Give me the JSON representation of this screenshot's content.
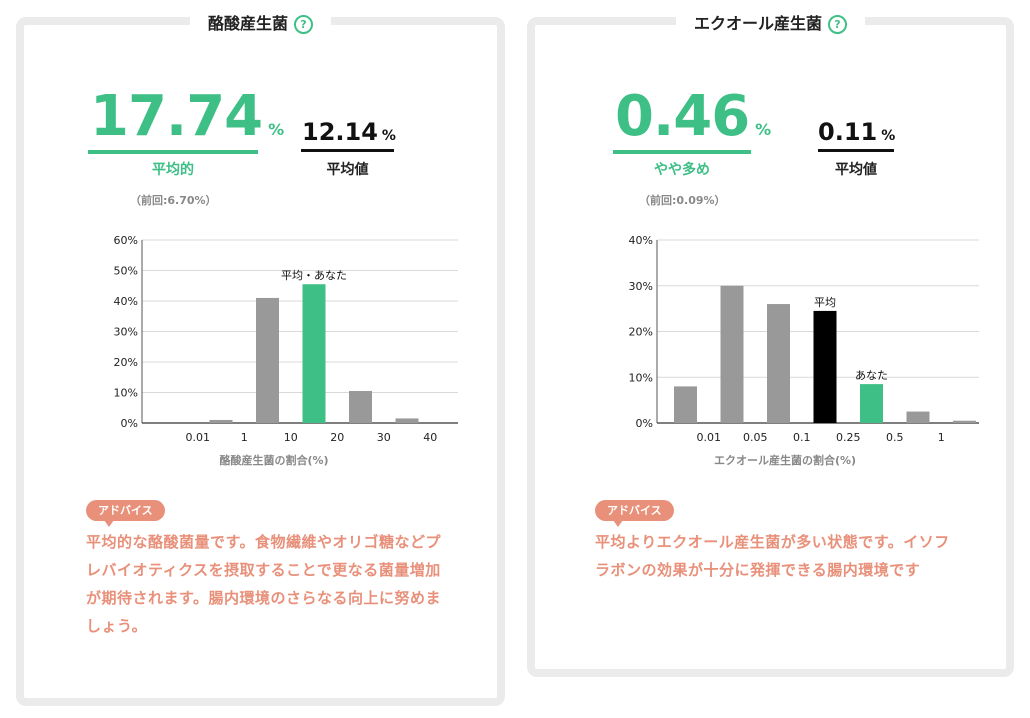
{
  "colors": {
    "accent": "#3dbf86",
    "bar_gray": "#999999",
    "highlight_black": "#000000",
    "advice": "#e8907a"
  },
  "butyrate": {
    "title": "酪酸産生菌",
    "help_icon": "question-circle-icon",
    "value": "17.74",
    "unit": "%",
    "status": "平均的",
    "previous": "（前回:6.70%）",
    "average_value": "12.14",
    "average_unit": "%",
    "average_label": "平均値",
    "chart_xtitle": "酪酸産生菌の割合(%)",
    "advice_label": "アドバイス",
    "advice_text": "平均的な酪酸菌量です。食物繊維やオリゴ糖などプレバイオティクスを摂取することで更なる菌量増加が期待されます。腸内環境のさらなる向上に努めましょう。"
  },
  "equol": {
    "title": "エクオール産生菌",
    "help_icon": "question-circle-icon",
    "value": "0.46",
    "unit": "%",
    "status": "やや多め",
    "previous": "（前回:0.09%）",
    "average_value": "0.11",
    "average_unit": "%",
    "average_label": "平均値",
    "chart_xtitle": "エクオール産生菌の割合(%)",
    "advice_label": "アドバイス",
    "advice_text": "平均よりエクオール産生菌が多い状態です。イソフラボンの効果が十分に発揮できる腸内環境です"
  },
  "chart_data": [
    {
      "type": "bar",
      "ylim": [
        0,
        60
      ],
      "yticks": [
        "0%",
        "10%",
        "20%",
        "30%",
        "40%",
        "50%",
        "60%"
      ],
      "xtick_labels": [
        "0.01",
        "1",
        "10",
        "20",
        "30",
        "40"
      ],
      "values": [
        0,
        1,
        41,
        45.5,
        10.5,
        1.5,
        0
      ],
      "highlight": {
        "index": 3,
        "color": "#3dbf86",
        "label": "平均・あなた"
      },
      "xlabel": "酪酸産生菌の割合(%)"
    },
    {
      "type": "bar",
      "ylim": [
        0,
        40
      ],
      "yticks": [
        "0%",
        "10%",
        "20%",
        "30%",
        "40%"
      ],
      "xtick_labels": [
        "0.01",
        "0.05",
        "0.1",
        "0.25",
        "0.5",
        "1"
      ],
      "values": [
        8,
        30,
        26,
        24.5,
        8.5,
        2.5,
        0.5
      ],
      "average": {
        "index": 3,
        "color": "#000000",
        "label": "平均"
      },
      "you": {
        "index": 4,
        "color": "#3dbf86",
        "label": "あなた"
      },
      "xlabel": "エクオール産生菌の割合(%)"
    }
  ]
}
